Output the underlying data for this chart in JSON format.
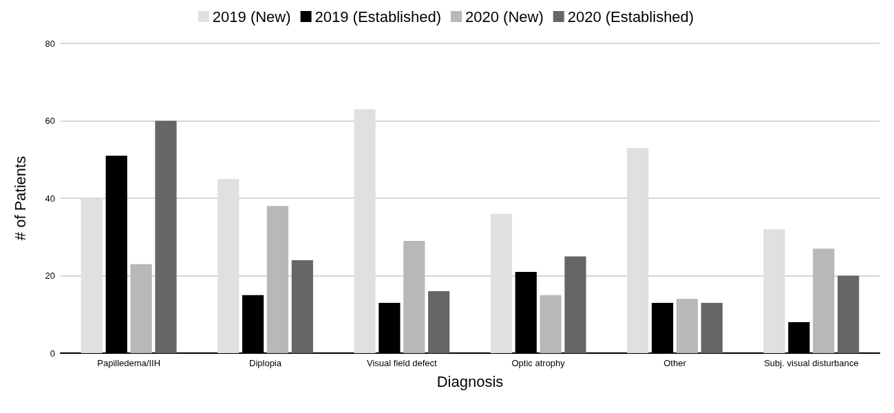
{
  "chart_data": {
    "type": "bar",
    "xlabel": "Diagnosis",
    "ylabel": "# of Patients",
    "categories": [
      "Papilledema/IIH",
      "Diplopia",
      "Visual field defect",
      "Optic atrophy",
      "Other",
      "Subj. visual disturbance"
    ],
    "series": [
      {
        "name": "2019 (New)",
        "color": "#e0e0e0",
        "values": [
          40,
          45,
          63,
          36,
          53,
          32
        ]
      },
      {
        "name": "2019 (Established)",
        "color": "#000000",
        "values": [
          51,
          15,
          13,
          21,
          13,
          8
        ]
      },
      {
        "name": "2020 (New)",
        "color": "#b8b8b8",
        "values": [
          23,
          38,
          29,
          15,
          14,
          27
        ]
      },
      {
        "name": "2020 (Established)",
        "color": "#666666",
        "values": [
          60,
          24,
          16,
          25,
          13,
          20
        ]
      }
    ],
    "ylim": [
      0,
      80
    ],
    "yticks": [
      0,
      20,
      40,
      60,
      80
    ],
    "grid": "y",
    "legend": "top"
  }
}
